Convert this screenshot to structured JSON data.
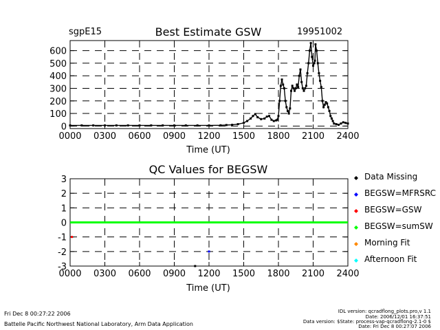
{
  "chart_data": [
    {
      "type": "scatter",
      "title": "Best Estimate GSW",
      "station": "sgpE15",
      "date": "19951002",
      "xlabel": "Time (UT)",
      "ylabel": "",
      "xlim": [
        0,
        2400
      ],
      "ylim": [
        -20,
        680
      ],
      "x_ticks": [
        "0000",
        "0300",
        "0600",
        "0900",
        "1200",
        "1500",
        "1800",
        "2100",
        "2400"
      ],
      "y_ticks": [
        "0",
        "100",
        "200",
        "300",
        "400",
        "500",
        "600"
      ],
      "grid": true,
      "series": [
        {
          "color": "#000000",
          "x": [
            0,
            100,
            200,
            300,
            400,
            500,
            600,
            700,
            800,
            900,
            1000,
            1100,
            1200,
            1300,
            1350,
            1400,
            1450,
            1500,
            1530,
            1560,
            1580,
            1600,
            1620,
            1650,
            1680,
            1700,
            1720,
            1740,
            1760,
            1780,
            1790,
            1800,
            1810,
            1820,
            1830,
            1840,
            1850,
            1860,
            1870,
            1880,
            1890,
            1900,
            1910,
            1920,
            1930,
            1940,
            1950,
            1960,
            1970,
            1980,
            1990,
            2000,
            2010,
            2020,
            2030,
            2040,
            2050,
            2060,
            2070,
            2080,
            2090,
            2100,
            2110,
            2115,
            2120,
            2130,
            2140,
            2150,
            2160,
            2170,
            2180,
            2190,
            2200,
            2210,
            2220,
            2230,
            2240,
            2250,
            2260,
            2270,
            2280,
            2300,
            2320,
            2340,
            2360,
            2380,
            2400
          ],
          "y": [
            5,
            5,
            5,
            5,
            5,
            5,
            5,
            5,
            5,
            5,
            5,
            5,
            5,
            6,
            8,
            10,
            15,
            25,
            40,
            60,
            80,
            95,
            70,
            55,
            60,
            75,
            80,
            50,
            40,
            45,
            50,
            80,
            200,
            320,
            370,
            330,
            300,
            200,
            150,
            120,
            100,
            140,
            280,
            320,
            300,
            280,
            300,
            330,
            310,
            400,
            450,
            350,
            300,
            280,
            300,
            320,
            420,
            500,
            600,
            660,
            550,
            480,
            500,
            520,
            650,
            600,
            500,
            420,
            360,
            310,
            200,
            150,
            170,
            190,
            180,
            150,
            120,
            80,
            60,
            40,
            20,
            15,
            10,
            20,
            30,
            25,
            20
          ]
        }
      ]
    },
    {
      "type": "scatter",
      "title": "QC Values for BEGSW",
      "xlabel": "Time (UT)",
      "ylabel": "",
      "xlim": [
        0,
        2400
      ],
      "ylim": [
        -3,
        3
      ],
      "x_ticks": [
        "0000",
        "0300",
        "0600",
        "0900",
        "1200",
        "1500",
        "1800",
        "2100",
        "2400"
      ],
      "y_ticks": [
        "-3",
        "-2",
        "-1",
        "0",
        "1",
        "2",
        "3"
      ],
      "grid": true,
      "series": [
        {
          "name": "BEGSW=sumSW",
          "color": "#00ff00",
          "x": [
            0,
            2400
          ],
          "y": [
            0,
            0
          ]
        },
        {
          "name": "BEGSW=GSW",
          "color": "#ff0000",
          "x": [
            15
          ],
          "y": [
            -1
          ]
        },
        {
          "name": "BEGSW=MFRSRC",
          "color": "#0000ff",
          "x": [
            1200
          ],
          "y": [
            -2
          ]
        },
        {
          "name": "Data Missing",
          "color": "#000000",
          "x": [
            1080
          ],
          "y": [
            -3
          ]
        }
      ],
      "legend": [
        {
          "label": "Data Missing",
          "color": "#000000"
        },
        {
          "label": "BEGSW=MFRSRC",
          "color": "#0000ff"
        },
        {
          "label": "BEGSW=GSW",
          "color": "#ff0000"
        },
        {
          "label": "BEGSW=sumSW",
          "color": "#00ff00"
        },
        {
          "label": "Morning Fit",
          "color": "#ff8800"
        },
        {
          "label": "Afternoon Fit",
          "color": "#00ffff"
        }
      ]
    }
  ],
  "footer": {
    "left_date": "Fri Dec  8 00:27:22 2006",
    "lab": "Battelle Pacific Northwest National Laboratory, Arm Data Application",
    "idl": "IDL version: qcradflong_plots.pro,v 1.1",
    "date1": "Date: 2006/12/01 16:37:51",
    "data_version": "Data version: $State: process-vap-qcradflong-2.1-0 $",
    "date2": "Date: Fri Dec  8 00:27:07 2006"
  }
}
